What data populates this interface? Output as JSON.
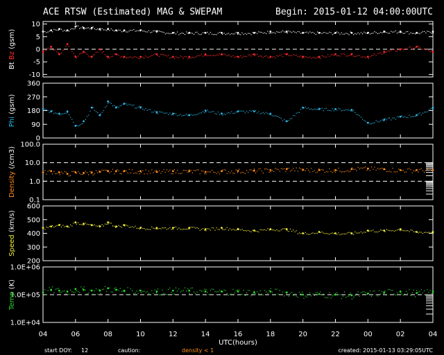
{
  "header": {
    "title": "ACE RTSW (Estimated) MAG & SWEPAM",
    "begin": "Begin: 2015-01-12 04:00:00UTC"
  },
  "footer": {
    "start_doy_label": "start DOY:",
    "start_doy_value": "12",
    "caution_label": "caution:",
    "caution_note": "density < 1",
    "created": "created: 2015-01-13 03:29:05UTC"
  },
  "colors": {
    "bt": "#ffffff",
    "bz": "#ff2a2a",
    "phi": "#2ab8e8",
    "density": "#ff8c1a",
    "speed": "#f2ee3a",
    "temp": "#2ad82a",
    "caution": "#ff8c1a"
  },
  "chart_data": {
    "type": "scatter",
    "x_range_hours": [
      4,
      28
    ],
    "x_ticks": [
      "04",
      "06",
      "08",
      "10",
      "12",
      "14",
      "16",
      "18",
      "20",
      "22",
      "00",
      "02",
      "04"
    ],
    "xlabel": "UTC(hours)",
    "panels": [
      {
        "id": "mag",
        "ylabel_parts": [
          "Bt",
          "Bz",
          "(gsm)"
        ],
        "ylabel_colors": [
          "#ffffff",
          "#ff2a2a",
          "#ffffff"
        ],
        "scale": "linear",
        "ylim": [
          -11,
          11
        ],
        "yticks": [
          -10,
          -5,
          0,
          5,
          10
        ],
        "yticklabels": [
          "-10",
          "-5",
          "0",
          "5",
          "10"
        ],
        "ref_line": 0,
        "series": [
          {
            "name": "Bt",
            "color": "#ffffff",
            "x": [
              4,
              4.5,
              5,
              5.5,
              6,
              6.5,
              7,
              7.5,
              8,
              8.5,
              9,
              10,
              11,
              12,
              13,
              14,
              15,
              16,
              17,
              18,
              19,
              20,
              21,
              22,
              23,
              24,
              25,
              26,
              27,
              28
            ],
            "y": [
              7,
              7.5,
              8,
              7.5,
              9,
              8.5,
              8.5,
              8,
              8,
              7.5,
              7.5,
              7.5,
              7,
              6.5,
              6.5,
              6.5,
              6.5,
              6.5,
              6.5,
              7,
              7,
              6.5,
              6.5,
              6.5,
              6.5,
              6.5,
              7,
              7,
              6.5,
              7
            ]
          },
          {
            "name": "Bz",
            "color": "#ff2a2a",
            "x": [
              4,
              4.5,
              5,
              5.5,
              6,
              6.5,
              7,
              7.5,
              8,
              8.5,
              9,
              10,
              11,
              12,
              13,
              14,
              15,
              16,
              17,
              18,
              19,
              20,
              21,
              22,
              23,
              24,
              25,
              26,
              27,
              28
            ],
            "y": [
              -1,
              1,
              -2,
              2,
              -3,
              -1,
              -3,
              0,
              -3,
              -2,
              -3,
              -3,
              -2,
              -3,
              -3,
              -2,
              -2,
              -3,
              -2,
              -3,
              -2,
              -3,
              -3,
              -2,
              -2,
              -3,
              -1,
              0,
              1,
              -1
            ]
          }
        ]
      },
      {
        "id": "phi",
        "ylabel_parts": [
          "Phi",
          "(gsm)"
        ],
        "ylabel_colors": [
          "#2ab8e8",
          "#ffffff"
        ],
        "scale": "linear",
        "ylim": [
          0,
          360
        ],
        "yticks": [
          0,
          90,
          180,
          270,
          360
        ],
        "yticklabels": [
          "0",
          "90",
          "180",
          "270",
          "360"
        ],
        "ref_line": null,
        "series": [
          {
            "name": "Phi",
            "color": "#2ab8e8",
            "x": [
              4,
              4.5,
              5,
              5.5,
              6,
              6.5,
              7,
              7.5,
              8,
              8.5,
              9,
              10,
              11,
              12,
              13,
              14,
              15,
              16,
              17,
              18,
              19,
              20,
              21,
              22,
              23,
              24,
              25,
              26,
              27,
              28
            ],
            "y": [
              190,
              175,
              160,
              175,
              80,
              110,
              200,
              150,
              240,
              200,
              225,
              200,
              170,
              160,
              150,
              180,
              160,
              175,
              175,
              160,
              110,
              200,
              190,
              190,
              185,
              100,
              120,
              140,
              150,
              200
            ]
          }
        ]
      },
      {
        "id": "density",
        "ylabel_parts": [
          "Density",
          "(/cm3)"
        ],
        "ylabel_colors": [
          "#ff8c1a",
          "#ffffff"
        ],
        "scale": "log",
        "ylim": [
          0.1,
          100
        ],
        "yticks": [
          0.1,
          1,
          10,
          100
        ],
        "yticklabels": [
          "0.1",
          "1.0",
          "10.0",
          "100.0"
        ],
        "ref_line": 1,
        "ref_line2": 10,
        "series": [
          {
            "name": "Density",
            "color": "#ff8c1a",
            "x": [
              4,
              4.5,
              5,
              5.5,
              6,
              6.5,
              7,
              7.5,
              8,
              8.5,
              9,
              10,
              11,
              12,
              13,
              14,
              15,
              16,
              17,
              18,
              19,
              20,
              21,
              22,
              23,
              24,
              25,
              26,
              27,
              28
            ],
            "y": [
              3,
              3.5,
              3,
              2.5,
              3,
              2.8,
              3,
              3.2,
              3.5,
              3.5,
              3.5,
              3.5,
              3.2,
              3.5,
              3.5,
              3.2,
              3.5,
              3.6,
              3.7,
              4,
              4.5,
              4.2,
              4,
              4,
              4.5,
              4.8,
              4.5,
              4,
              4,
              4
            ]
          }
        ]
      },
      {
        "id": "speed",
        "ylabel_parts": [
          "Speed",
          "(km/s)"
        ],
        "ylabel_colors": [
          "#f2ee3a",
          "#ffffff"
        ],
        "scale": "linear",
        "ylim": [
          200,
          600
        ],
        "yticks": [
          200,
          300,
          400,
          500,
          600
        ],
        "yticklabels": [
          "200",
          "300",
          "400",
          "500",
          "600"
        ],
        "ref_line": null,
        "series": [
          {
            "name": "Speed",
            "color": "#f2ee3a",
            "x": [
              4,
              4.5,
              5,
              5.5,
              6,
              6.5,
              7,
              7.5,
              8,
              8.5,
              9,
              10,
              11,
              12,
              13,
              14,
              15,
              16,
              17,
              18,
              19,
              20,
              21,
              22,
              23,
              24,
              25,
              26,
              27,
              28
            ],
            "y": [
              440,
              450,
              460,
              450,
              480,
              470,
              460,
              450,
              480,
              450,
              460,
              440,
              440,
              440,
              440,
              430,
              440,
              430,
              420,
              430,
              430,
              400,
              410,
              400,
              400,
              420,
              420,
              430,
              410,
              410
            ]
          }
        ]
      },
      {
        "id": "temp",
        "ylabel_parts": [
          "Temp",
          "(K)"
        ],
        "ylabel_colors": [
          "#2ad82a",
          "#ffffff"
        ],
        "scale": "log",
        "ylim": [
          10000,
          1000000
        ],
        "yticks": [
          10000,
          100000,
          1000000
        ],
        "yticklabels": [
          "1.0E+04",
          "1.0E+05",
          "1.0E+06"
        ],
        "ref_line": 100000,
        "series": [
          {
            "name": "Temp",
            "color": "#2ad82a",
            "x": [
              4,
              4.5,
              5,
              5.5,
              6,
              6.5,
              7,
              7.5,
              8,
              8.5,
              9,
              10,
              11,
              12,
              13,
              14,
              15,
              16,
              17,
              18,
              19,
              20,
              21,
              22,
              23,
              24,
              25,
              26,
              27,
              28
            ],
            "y": [
              120000,
              150000,
              140000,
              130000,
              160000,
              150000,
              140000,
              140000,
              170000,
              150000,
              140000,
              140000,
              130000,
              140000,
              140000,
              130000,
              130000,
              130000,
              120000,
              130000,
              120000,
              100000,
              105000,
              100000,
              95000,
              110000,
              120000,
              130000,
              115000,
              130000
            ]
          }
        ]
      }
    ]
  }
}
